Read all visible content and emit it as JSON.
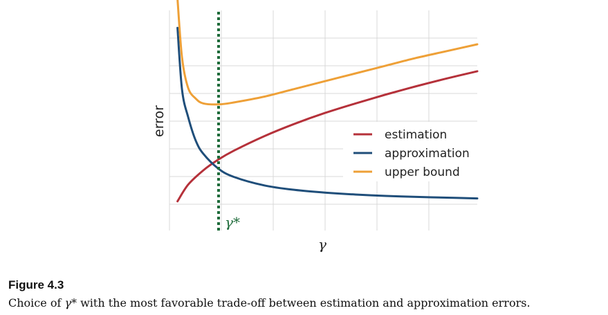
{
  "chart_data": {
    "type": "line",
    "xlabel": "γ",
    "ylabel": "error",
    "x_ticks_labeled": false,
    "y_ticks_labeled": false,
    "grid": true,
    "legend_position": "center-right",
    "xlim": [
      0,
      10
    ],
    "ylim": [
      0,
      10
    ],
    "series": [
      {
        "name": "estimation",
        "color": "#b5313a",
        "x": [
          0.15,
          0.5,
          1,
          1.5,
          2,
          3,
          4,
          5,
          6,
          7,
          8,
          9,
          10
        ],
        "y": [
          0.15,
          1.01,
          1.75,
          2.31,
          2.76,
          3.51,
          4.15,
          4.71,
          5.2,
          5.66,
          6.09,
          6.49,
          6.86
        ]
      },
      {
        "name": "approximation",
        "color": "#1f4e7a",
        "x": [
          0.15,
          0.3,
          0.5,
          0.75,
          1,
          1.5,
          2,
          3,
          4,
          5,
          6,
          7,
          8,
          9,
          10
        ],
        "y": [
          9.1,
          5.9,
          4.5,
          3.28,
          2.6,
          1.83,
          1.41,
          0.97,
          0.74,
          0.6,
          0.5,
          0.43,
          0.38,
          0.34,
          0.3
        ]
      },
      {
        "name": "upper bound",
        "color": "#eea037",
        "x": [
          0.15,
          0.3,
          0.5,
          0.75,
          1,
          1.5,
          2,
          3,
          4,
          5,
          6,
          7,
          8,
          9,
          10
        ],
        "y": [
          10.6,
          7.55,
          6.0,
          5.45,
          5.2,
          5.15,
          5.25,
          5.55,
          5.95,
          6.35,
          6.75,
          7.15,
          7.55,
          7.9,
          8.25
        ]
      }
    ],
    "optimum": {
      "x": 1.5,
      "label": "γ*",
      "color": "#1e6b3a"
    }
  },
  "caption": {
    "label": "Figure 4.3",
    "text_before": "Choice of ",
    "symbol": "γ*",
    "text_after": " with the most favorable trade-off between estimation and approximation errors."
  }
}
